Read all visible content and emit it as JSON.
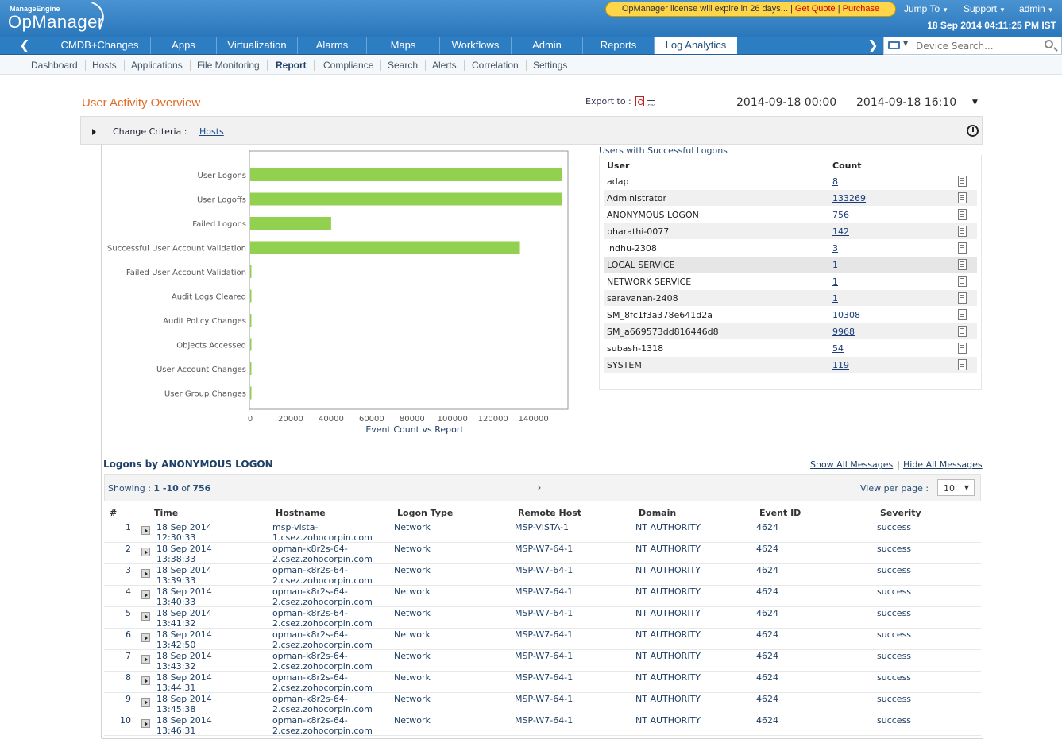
{
  "header": {
    "brand_small": "ManageEngine",
    "brand_large": "OpManager",
    "license_msg": "OpManager license will expire in 26 days...",
    "get_quote": "Get Quote",
    "purchase": "Purchase",
    "jump_to": "Jump To",
    "support": "Support",
    "admin": "admin",
    "datetime": "18 Sep 2014 04:11:25 PM IST"
  },
  "nav": {
    "tabs": [
      "CMDB+Changes",
      "Apps",
      "Virtualization",
      "Alarms",
      "Maps",
      "Workflows",
      "Admin",
      "Reports",
      "Log Analytics"
    ],
    "active": "Log Analytics",
    "search_placeholder": "Device Search..."
  },
  "subnav": {
    "items": [
      "Dashboard",
      "Hosts",
      "Applications",
      "File Monitoring",
      "Report",
      "Compliance",
      "Search",
      "Alerts",
      "Correlation",
      "Settings"
    ],
    "active": "Report"
  },
  "page": {
    "title": "User Activity Overview",
    "export_label": "Export to :",
    "date_from": "2014-09-18 00:00",
    "date_to": "2014-09-18 16:10",
    "change_criteria": "Change Criteria :",
    "criteria_value": "Hosts"
  },
  "chart_data": {
    "type": "bar",
    "orientation": "horizontal",
    "categories": [
      "User Logons",
      "User Logoffs",
      "Failed Logons",
      "Successful User Account Validation",
      "Failed User Account Validation",
      "Audit Logs Cleared",
      "Audit Policy Changes",
      "Objects Accessed",
      "User Account Changes",
      "User Group Changes"
    ],
    "values": [
      154000,
      154000,
      40000,
      133269,
      0,
      0,
      0,
      0,
      0,
      0
    ],
    "xlabel": "Event Count vs Report",
    "ylabel": "",
    "xlim": [
      0,
      157000
    ],
    "xticks": [
      0,
      20000,
      40000,
      60000,
      80000,
      100000,
      120000,
      140000
    ],
    "xtick_labels": [
      "0",
      "20000",
      "40000",
      "60000",
      "80000",
      "100000",
      "120000",
      "140000"
    ],
    "color": "#92d050"
  },
  "users": {
    "title": "Users with Successful Logons",
    "col_user": "User",
    "col_count": "Count",
    "rows": [
      {
        "user": "adap",
        "count": "8"
      },
      {
        "user": "Administrator",
        "count": "133269"
      },
      {
        "user": "ANONYMOUS LOGON",
        "count": "756"
      },
      {
        "user": "bharathi-0077",
        "count": "142"
      },
      {
        "user": "indhu-2308",
        "count": "3"
      },
      {
        "user": "LOCAL SERVICE",
        "count": "1"
      },
      {
        "user": "NETWORK SERVICE",
        "count": "1"
      },
      {
        "user": "saravanan-2408",
        "count": "1"
      },
      {
        "user": "SM_8fc1f3a378e641d2a",
        "count": "10308"
      },
      {
        "user": "SM_a669573dd816446d8",
        "count": "9968"
      },
      {
        "user": "subash-1318",
        "count": "54"
      },
      {
        "user": "SYSTEM",
        "count": "119"
      }
    ]
  },
  "logons": {
    "title": "Logons by ANONYMOUS LOGON",
    "show_all": "Show All Messages",
    "separator": "|",
    "hide_all": "Hide All Messages",
    "showing_label": "Showing :",
    "showing_range": "1 -10",
    "showing_of": "of",
    "showing_total": "756",
    "view_per_page": "View per page :",
    "per_page": "10",
    "columns": [
      "#",
      "Time",
      "Hostname",
      "Logon Type",
      "Remote Host",
      "Domain",
      "Event ID",
      "Severity"
    ],
    "rows": [
      {
        "n": "1",
        "date": "18 Sep 2014",
        "time": "12:30:33",
        "host1": "msp-vista-",
        "host2": "1.csez.zohocorpin.com",
        "type": "Network",
        "remote": "MSP-VISTA-1",
        "domain": "NT AUTHORITY",
        "event": "4624",
        "severity": "success"
      },
      {
        "n": "2",
        "date": "18 Sep 2014",
        "time": "13:38:33",
        "host1": "opman-k8r2s-64-",
        "host2": "2.csez.zohocorpin.com",
        "type": "Network",
        "remote": "MSP-W7-64-1",
        "domain": "NT AUTHORITY",
        "event": "4624",
        "severity": "success"
      },
      {
        "n": "3",
        "date": "18 Sep 2014",
        "time": "13:39:33",
        "host1": "opman-k8r2s-64-",
        "host2": "2.csez.zohocorpin.com",
        "type": "Network",
        "remote": "MSP-W7-64-1",
        "domain": "NT AUTHORITY",
        "event": "4624",
        "severity": "success"
      },
      {
        "n": "4",
        "date": "18 Sep 2014",
        "time": "13:40:33",
        "host1": "opman-k8r2s-64-",
        "host2": "2.csez.zohocorpin.com",
        "type": "Network",
        "remote": "MSP-W7-64-1",
        "domain": "NT AUTHORITY",
        "event": "4624",
        "severity": "success"
      },
      {
        "n": "5",
        "date": "18 Sep 2014",
        "time": "13:41:32",
        "host1": "opman-k8r2s-64-",
        "host2": "2.csez.zohocorpin.com",
        "type": "Network",
        "remote": "MSP-W7-64-1",
        "domain": "NT AUTHORITY",
        "event": "4624",
        "severity": "success"
      },
      {
        "n": "6",
        "date": "18 Sep 2014",
        "time": "13:42:50",
        "host1": "opman-k8r2s-64-",
        "host2": "2.csez.zohocorpin.com",
        "type": "Network",
        "remote": "MSP-W7-64-1",
        "domain": "NT AUTHORITY",
        "event": "4624",
        "severity": "success"
      },
      {
        "n": "7",
        "date": "18 Sep 2014",
        "time": "13:43:32",
        "host1": "opman-k8r2s-64-",
        "host2": "2.csez.zohocorpin.com",
        "type": "Network",
        "remote": "MSP-W7-64-1",
        "domain": "NT AUTHORITY",
        "event": "4624",
        "severity": "success"
      },
      {
        "n": "8",
        "date": "18 Sep 2014",
        "time": "13:44:31",
        "host1": "opman-k8r2s-64-",
        "host2": "2.csez.zohocorpin.com",
        "type": "Network",
        "remote": "MSP-W7-64-1",
        "domain": "NT AUTHORITY",
        "event": "4624",
        "severity": "success"
      },
      {
        "n": "9",
        "date": "18 Sep 2014",
        "time": "13:45:38",
        "host1": "opman-k8r2s-64-",
        "host2": "2.csez.zohocorpin.com",
        "type": "Network",
        "remote": "MSP-W7-64-1",
        "domain": "NT AUTHORITY",
        "event": "4624",
        "severity": "success"
      },
      {
        "n": "10",
        "date": "18 Sep 2014",
        "time": "13:46:31",
        "host1": "opman-k8r2s-64-",
        "host2": "2.csez.zohocorpin.com",
        "type": "Network",
        "remote": "MSP-W7-64-1",
        "domain": "NT AUTHORITY",
        "event": "4624",
        "severity": "success"
      }
    ]
  }
}
